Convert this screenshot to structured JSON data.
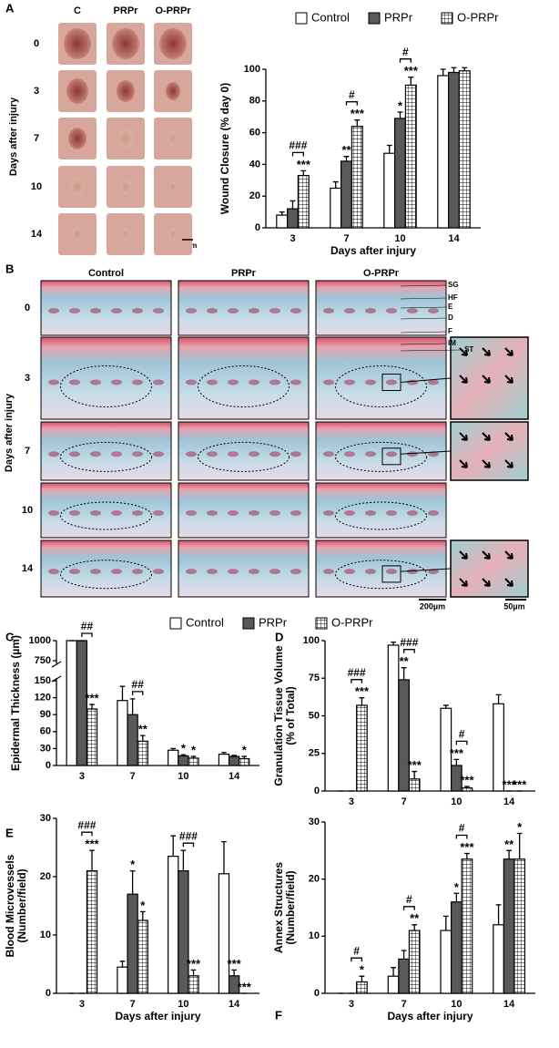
{
  "panel_A_photos": {
    "panel": "A",
    "columns": [
      "C",
      "PRPr",
      "O-PRPr"
    ],
    "rows": [
      "0",
      "3",
      "7",
      "10",
      "14"
    ],
    "row_axis": "Days after injury",
    "scale": "1mm"
  },
  "panel_B_histology": {
    "panel": "B",
    "columns": [
      "Control",
      "PRPr",
      "O-PRPr"
    ],
    "rows": [
      "0",
      "3",
      "7",
      "10",
      "14"
    ],
    "row_axis": "Days after injury",
    "layer_labels": [
      "SG",
      "HF",
      "E",
      "D",
      "F",
      "IM",
      "ST"
    ],
    "scale_main": "200µm",
    "scale_inset": "50µm"
  },
  "chart_data": [
    {
      "type": "bar",
      "panel": "A",
      "ylabel": "Wound Closure (% day 0)",
      "xlabel": "Days after injury",
      "legend": "top",
      "categories": [
        "3",
        "7",
        "10",
        "14"
      ],
      "series": [
        {
          "name": "Control",
          "color": "#ffffff",
          "values": [
            8,
            25,
            47,
            96
          ],
          "errors": [
            2,
            4,
            5,
            4
          ]
        },
        {
          "name": "PRPr",
          "color": "#595959",
          "values": [
            12,
            42,
            69,
            98
          ],
          "errors": [
            5,
            3,
            4,
            3
          ],
          "stars": [
            null,
            "**",
            "*",
            null
          ]
        },
        {
          "name": "O-PRPr",
          "color": "#ffffff",
          "pattern": "grid",
          "values": [
            33,
            64,
            90,
            99
          ],
          "errors": [
            3,
            4,
            5,
            2
          ],
          "stars": [
            "***",
            "***",
            "***",
            null
          ]
        }
      ],
      "brackets": [
        "###",
        "#",
        "#",
        null
      ],
      "ylim": [
        0,
        100
      ],
      "yticks": [
        0,
        20,
        40,
        60,
        80,
        100
      ]
    },
    {
      "type": "bar",
      "panel": "C",
      "ylabel": "Epidermal Thickness (µm)",
      "legend": "top",
      "categories": [
        "3",
        "7",
        "10",
        "14"
      ],
      "series": [
        {
          "name": "Control",
          "color": "#ffffff",
          "values": [
            1000,
            115,
            27,
            20
          ],
          "errors": [
            0,
            25,
            3,
            3
          ]
        },
        {
          "name": "PRPr",
          "color": "#595959",
          "values": [
            1000,
            90,
            17,
            16
          ],
          "errors": [
            0,
            28,
            2,
            2
          ],
          "stars": [
            null,
            null,
            "*",
            null
          ]
        },
        {
          "name": "O-PRPr",
          "color": "#ffffff",
          "pattern": "grid",
          "values": [
            100,
            43,
            13,
            12
          ],
          "errors": [
            8,
            10,
            3,
            4
          ],
          "stars": [
            "***",
            "**",
            "*",
            "*"
          ]
        }
      ],
      "brackets": [
        "##",
        "##",
        null,
        null
      ],
      "ylim": [
        0,
        1000
      ],
      "axis_break": [
        150,
        750
      ],
      "yticks": [
        0,
        30,
        60,
        90,
        120,
        150,
        750,
        1000
      ]
    },
    {
      "type": "bar",
      "panel": "D",
      "ylabel": [
        "Granulation Tissue Volume",
        "(% of Total)"
      ],
      "categories": [
        "3",
        "7",
        "10",
        "14"
      ],
      "series": [
        {
          "name": "Control",
          "color": "#ffffff",
          "values": [
            0,
            97,
            55,
            58
          ],
          "errors": [
            0,
            2,
            2,
            6
          ]
        },
        {
          "name": "PRPr",
          "color": "#595959",
          "values": [
            0,
            74,
            17,
            0
          ],
          "errors": [
            0,
            8,
            4,
            0
          ],
          "stars": [
            null,
            "**",
            "***",
            "***"
          ]
        },
        {
          "name": "O-PRPr",
          "color": "#ffffff",
          "pattern": "grid",
          "values": [
            57,
            8,
            2,
            0
          ],
          "errors": [
            5,
            5,
            1,
            0
          ],
          "stars": [
            "***",
            "***",
            "***",
            "***"
          ]
        }
      ],
      "brackets": [
        "###",
        "###",
        "#",
        null
      ],
      "ylim": [
        0,
        100
      ],
      "yticks": [
        0,
        25,
        50,
        75,
        100
      ]
    },
    {
      "type": "bar",
      "panel": "E",
      "ylabel": [
        "Blood Microvessels",
        "(Number/field)"
      ],
      "xlabel": "Days after injury",
      "categories": [
        "3",
        "7",
        "10",
        "14"
      ],
      "series": [
        {
          "name": "Control",
          "color": "#ffffff",
          "values": [
            0,
            4.5,
            23.5,
            20.5
          ],
          "errors": [
            0,
            1,
            3.5,
            5.5
          ]
        },
        {
          "name": "PRPr",
          "color": "#595959",
          "values": [
            0,
            17,
            21,
            3
          ],
          "errors": [
            0,
            4,
            3.5,
            1
          ],
          "stars": [
            null,
            "*",
            null,
            "***"
          ]
        },
        {
          "name": "O-PRPr",
          "color": "#ffffff",
          "pattern": "grid",
          "values": [
            21,
            12.5,
            3,
            0
          ],
          "errors": [
            3.5,
            1.5,
            1,
            0
          ],
          "stars": [
            "***",
            "*",
            "***",
            "***"
          ]
        }
      ],
      "brackets": [
        "###",
        null,
        "###",
        null
      ],
      "ylim": [
        0,
        30
      ],
      "yticks": [
        0,
        10,
        20,
        30
      ]
    },
    {
      "type": "bar",
      "panel": "F",
      "ylabel": [
        "Annex Structures",
        "(Number/field)"
      ],
      "xlabel": "Days after injury",
      "categories": [
        "3",
        "7",
        "10",
        "14"
      ],
      "series": [
        {
          "name": "Control",
          "color": "#ffffff",
          "values": [
            0,
            3,
            11,
            12
          ],
          "errors": [
            0,
            1.5,
            2.5,
            3.5
          ]
        },
        {
          "name": "PRPr",
          "color": "#595959",
          "values": [
            0,
            6,
            16,
            23.5
          ],
          "errors": [
            0,
            1.5,
            1.5,
            1.5
          ],
          "stars": [
            null,
            null,
            "*",
            "**"
          ]
        },
        {
          "name": "O-PRPr",
          "color": "#ffffff",
          "pattern": "grid",
          "values": [
            2,
            11,
            23.5,
            23.5
          ],
          "errors": [
            1,
            1,
            1,
            4.5
          ],
          "stars": [
            "*",
            "**",
            "***",
            "*"
          ]
        }
      ],
      "brackets": [
        "#",
        "#",
        "#",
        null
      ],
      "ylim": [
        0,
        30
      ],
      "yticks": [
        0,
        10,
        20,
        30
      ]
    }
  ]
}
